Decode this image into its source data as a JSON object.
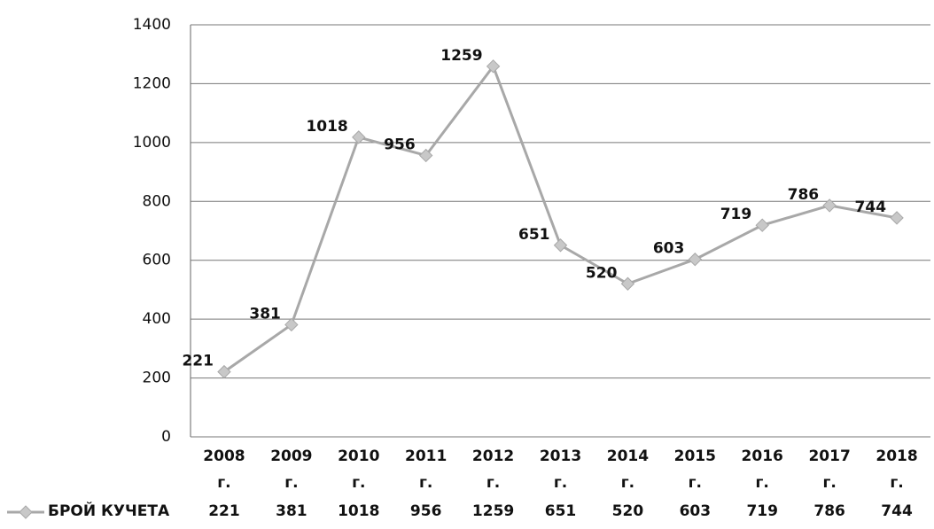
{
  "chart_data": {
    "type": "line",
    "categories": [
      "2008 г.",
      "2009 г.",
      "2010 г.",
      "2011 г.",
      "2012 г.",
      "2013 г.",
      "2014 г.",
      "2015 г.",
      "2016 г.",
      "2017 г.",
      "2018 г."
    ],
    "series": [
      {
        "name": "БРОЙ КУЧЕТА",
        "color": "#a8a8a8",
        "values": [
          221,
          381,
          1018,
          956,
          1259,
          651,
          520,
          603,
          719,
          786,
          744
        ]
      }
    ],
    "ylim": [
      0,
      1400
    ],
    "yticks": [
      0,
      200,
      400,
      600,
      800,
      1000,
      1200,
      1400
    ],
    "grid": true
  }
}
